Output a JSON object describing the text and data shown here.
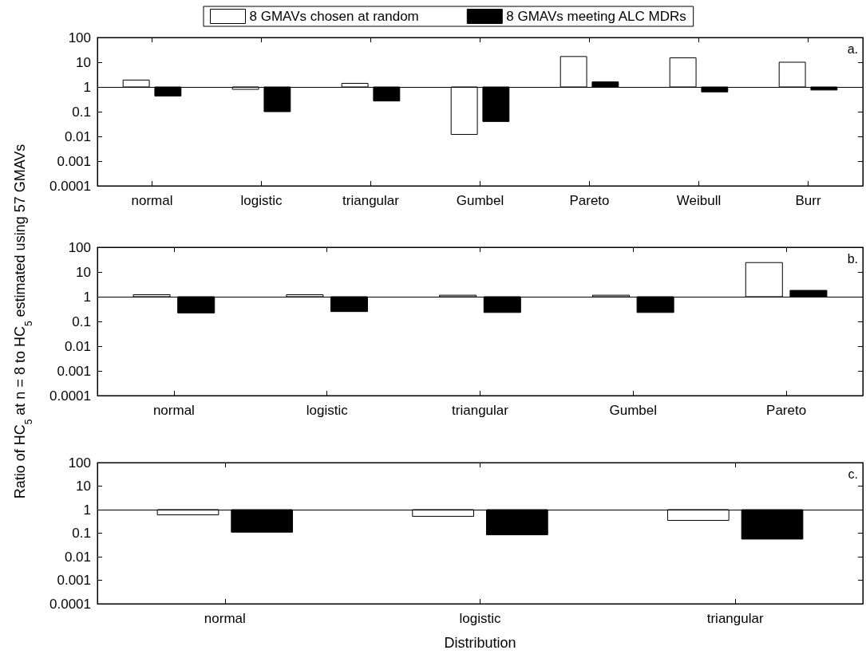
{
  "chart_data": [
    {
      "type": "bar",
      "categories": [
        "normal",
        "logistic",
        "triangular",
        "Gumbel",
        "Pareto",
        "Weibull",
        "Burr"
      ],
      "series": [
        {
          "name": "8 GMAVs chosen at random",
          "color": "#ffffff",
          "base": [
            1,
            1,
            1,
            1,
            1,
            1,
            1
          ],
          "values": [
            0.9,
            -0.2,
            0.4,
            -0.988,
            16,
            14,
            9
          ]
        },
        {
          "name": "8 GMAVs meeting ALC MDRs",
          "color": "#000000",
          "base": [
            1,
            1,
            1,
            1,
            1,
            1,
            1
          ],
          "values": [
            -0.57,
            -0.9,
            -0.73,
            -0.96,
            0.6,
            -0.37,
            -0.25
          ]
        }
      ],
      "log": "y",
      "ylim": [
        0.0001,
        100
      ],
      "yticks": [
        0.0001,
        0.001,
        0.01,
        0.1,
        1,
        10,
        100
      ],
      "ref_lines": [
        {
          "axis": "y",
          "value": 1
        }
      ],
      "legend": "top",
      "grid": false,
      "annotations": [
        "a."
      ]
    },
    {
      "type": "bar",
      "categories": [
        "normal",
        "logistic",
        "triangular",
        "Gumbel",
        "Pareto"
      ],
      "series": [
        {
          "color": "#ffffff",
          "base": [
            1,
            1,
            1,
            1,
            1
          ],
          "values": [
            0.2,
            0.2,
            0.15,
            0.15,
            23
          ]
        },
        {
          "color": "#000000",
          "base": [
            1,
            1,
            1,
            1,
            1
          ],
          "values": [
            -0.78,
            -0.75,
            -0.77,
            -0.77,
            0.8
          ]
        }
      ],
      "log": "y",
      "ylim": [
        0.0001,
        100
      ],
      "yticks": [
        0.0001,
        0.001,
        0.01,
        0.1,
        1,
        10,
        100
      ],
      "ylabel": "Ratio of HC$_{5}$ at n = 8 to HC$_{5}$ estimated using 57 GMAVs",
      "ref_lines": [
        {
          "axis": "y",
          "value": 1
        }
      ],
      "grid": false,
      "annotations": [
        "b."
      ]
    },
    {
      "type": "bar",
      "categories": [
        "normal",
        "logistic",
        "triangular"
      ],
      "series": [
        {
          "color": "#ffffff",
          "base": [
            1,
            1,
            1
          ],
          "values": [
            -0.4,
            -0.48,
            -0.65
          ]
        },
        {
          "color": "#000000",
          "base": [
            1,
            1,
            1
          ],
          "values": [
            -0.89,
            -0.915,
            -0.944
          ]
        }
      ],
      "log": "y",
      "ylim": [
        0.0001,
        100
      ],
      "yticks": [
        0.0001,
        0.001,
        0.01,
        0.1,
        1,
        10,
        100
      ],
      "xlabel": "Distribution",
      "ref_lines": [
        {
          "axis": "y",
          "value": 1
        }
      ],
      "grid": false,
      "annotations": [
        "c."
      ]
    }
  ]
}
